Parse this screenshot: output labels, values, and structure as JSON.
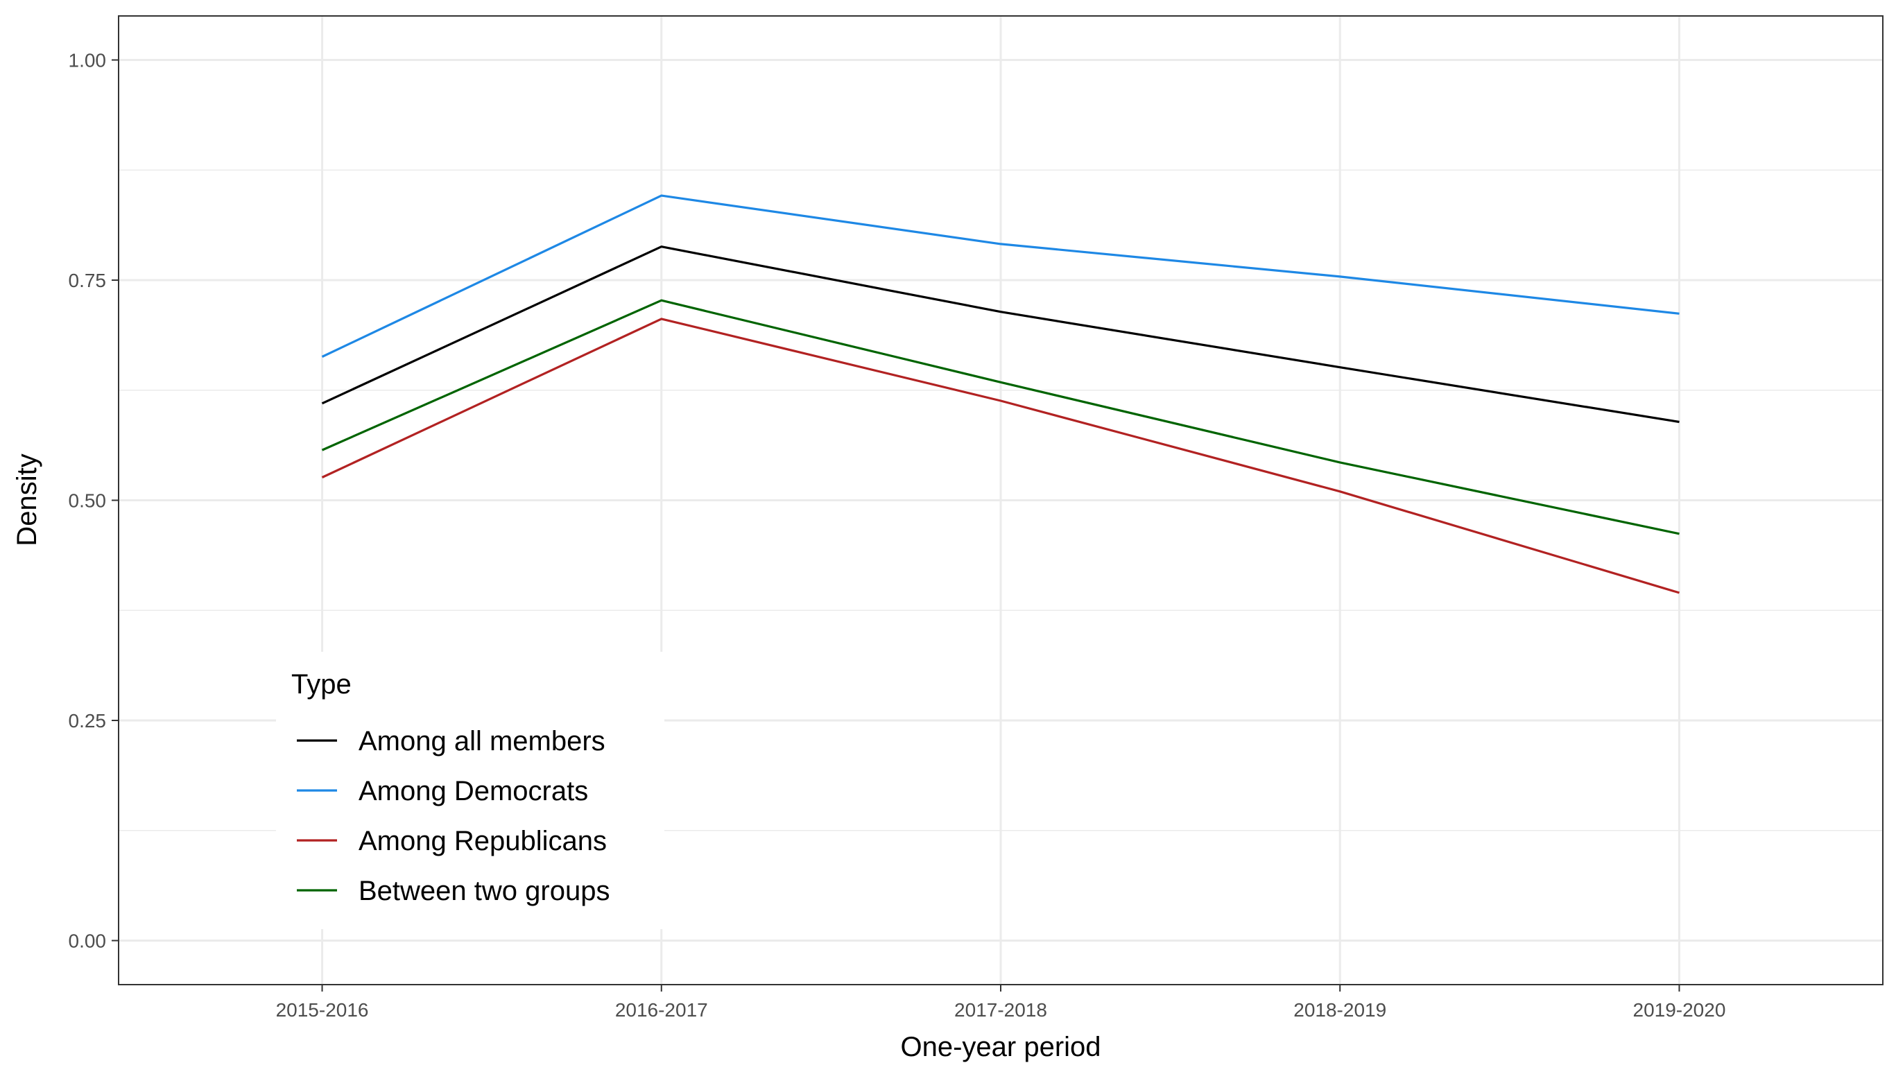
{
  "chart_data": {
    "type": "line",
    "xlabel": "One-year period",
    "ylabel": "Density",
    "categories": [
      "2015-2016",
      "2016-2017",
      "2017-2018",
      "2018-2019",
      "2019-2020"
    ],
    "ylim": [
      -0.05,
      1.05
    ],
    "yticks": [
      "0.00",
      "0.25",
      "0.50",
      "0.75",
      "1.00"
    ],
    "ytick_values": [
      0,
      0.25,
      0.5,
      0.75,
      1.0
    ],
    "grid": true,
    "legend": {
      "title": "Type",
      "placement": "bottom-left inside"
    },
    "series": [
      {
        "name": "Among all members",
        "color": "#000000",
        "values": [
          0.61,
          0.788,
          0.714,
          0.651,
          0.589
        ]
      },
      {
        "name": "Among Democrats",
        "color": "#1e88e5",
        "values": [
          0.663,
          0.846,
          0.791,
          0.754,
          0.712
        ]
      },
      {
        "name": "Among Republicans",
        "color": "#b22222",
        "values": [
          0.526,
          0.706,
          0.613,
          0.51,
          0.395
        ]
      },
      {
        "name": "Between two groups",
        "color": "#006400",
        "values": [
          0.557,
          0.727,
          0.634,
          0.543,
          0.462
        ]
      }
    ]
  }
}
